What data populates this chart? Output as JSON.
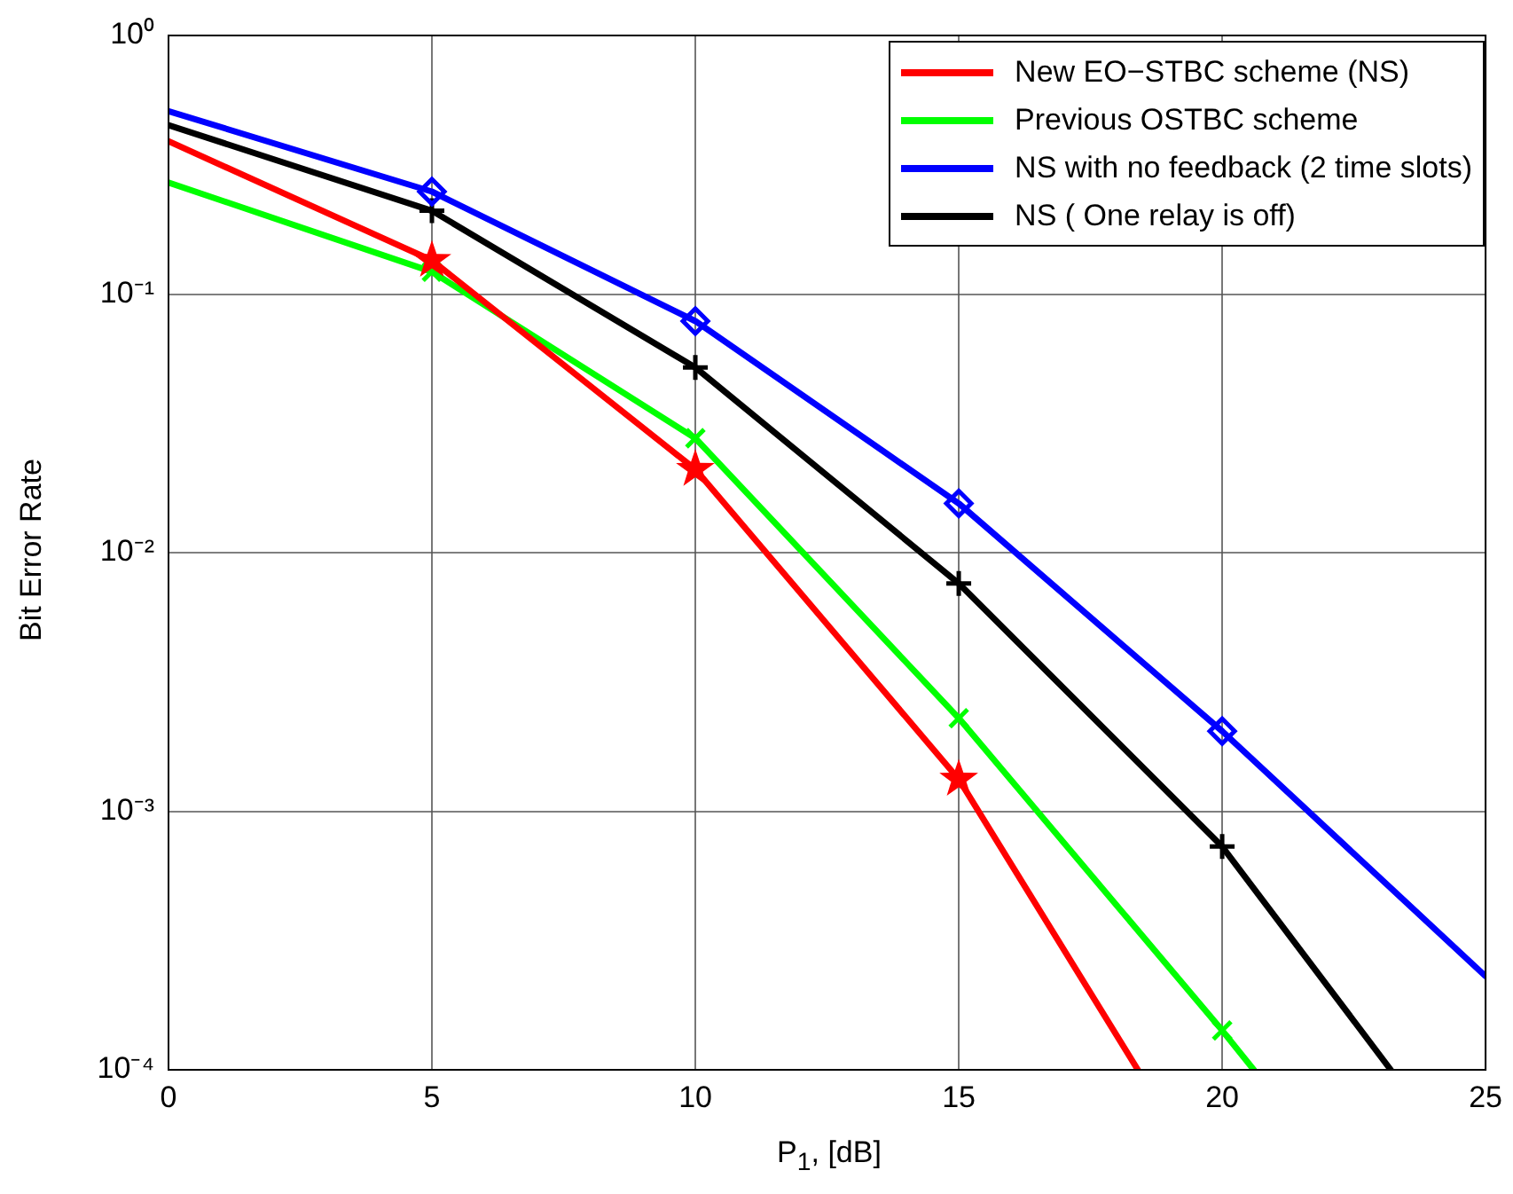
{
  "chart_data": {
    "type": "line",
    "xlabel": "P$_{1}$, [dB]",
    "ylabel": "Bit Error Rate",
    "log": "y",
    "grid": true,
    "legend": "top right",
    "line_style": "solid",
    "xlim": [
      0,
      25
    ],
    "xticks": [
      0,
      5,
      10,
      15,
      20,
      25
    ],
    "ylim": [
      0.0001,
      1
    ],
    "yticks": [
      {
        "value": 0.0001,
        "label": "10⁻⁴"
      },
      {
        "value": 0.001,
        "label": "10⁻³"
      },
      {
        "value": 0.01,
        "label": "10⁻²"
      },
      {
        "value": 0.1,
        "label": "10⁻¹"
      },
      {
        "value": 1,
        "label": "10⁰"
      }
    ],
    "series": [
      {
        "name": "New EO−STBC scheme (NS)",
        "color": "#ff0000",
        "marker": "star",
        "x": [
          0,
          5,
          10,
          15,
          18.4
        ],
        "values": [
          0.39,
          0.135,
          0.021,
          0.00133,
          0.0001
        ]
      },
      {
        "name": "Previous OSTBC scheme",
        "color": "#00ff00",
        "marker": "cross",
        "x": [
          0,
          5,
          10,
          15,
          20,
          20.6
        ],
        "values": [
          0.27,
          0.122,
          0.0277,
          0.00229,
          0.000142,
          0.0001
        ]
      },
      {
        "name": "NS with no feedback (2 time slots)",
        "color": "#0000ff",
        "marker": "diamond",
        "x": [
          0,
          5,
          10,
          15,
          20,
          25
        ],
        "values": [
          0.51,
          0.249,
          0.0786,
          0.0155,
          0.00204,
          0.00023
        ]
      },
      {
        "name": "NS ( One relay is off)",
        "color": "#000000",
        "marker": "plus",
        "x": [
          0,
          5,
          10,
          15,
          20,
          23.2
        ],
        "values": [
          0.45,
          0.21,
          0.052,
          0.0076,
          0.00073,
          0.0001
        ]
      }
    ]
  }
}
